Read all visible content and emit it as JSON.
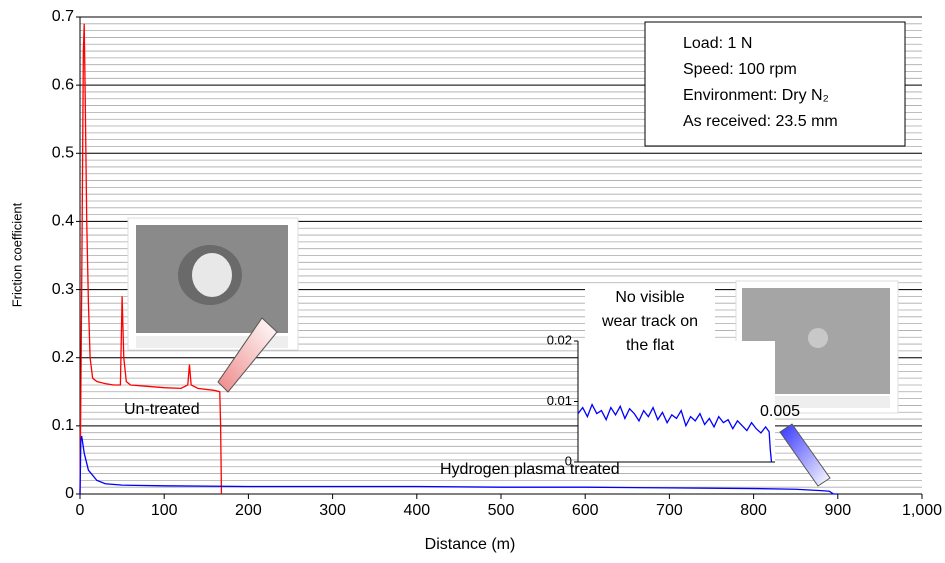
{
  "chart_data": [
    {
      "type": "line",
      "x_label": "Distance (m)",
      "y_label": "Friction coefficient",
      "xlim": [
        0,
        1000
      ],
      "ylim": [
        0,
        0.7
      ],
      "xticks": [
        0,
        100,
        200,
        300,
        400,
        500,
        600,
        700,
        800,
        900,
        {
          "value": 1000,
          "label": "1,000"
        }
      ],
      "yticks": [
        0,
        0.1,
        0.2,
        0.3,
        0.4,
        0.5,
        0.6,
        0.7
      ],
      "grid": true,
      "minor_grid": 0.01,
      "series": [
        {
          "name": "Un-treated",
          "color": "#ff0000",
          "x": [
            0,
            2,
            4,
            5,
            6,
            8,
            10,
            12,
            15,
            20,
            30,
            40,
            48,
            50,
            52,
            55,
            60,
            80,
            100,
            120,
            128,
            130,
            132,
            140,
            160,
            166,
            167,
            168
          ],
          "values": [
            0,
            0.3,
            0.65,
            0.69,
            0.6,
            0.4,
            0.28,
            0.2,
            0.17,
            0.165,
            0.162,
            0.16,
            0.16,
            0.29,
            0.2,
            0.165,
            0.16,
            0.158,
            0.156,
            0.155,
            0.16,
            0.19,
            0.16,
            0.155,
            0.152,
            0.15,
            0.1,
            0
          ]
        },
        {
          "name": "Hydrogen plasma treated",
          "color": "#0000ff",
          "x": [
            0,
            1,
            2,
            5,
            10,
            20,
            30,
            50,
            100,
            200,
            300,
            400,
            500,
            600,
            700,
            800,
            850,
            880,
            890,
            895,
            900
          ],
          "values": [
            0,
            0.08,
            0.085,
            0.06,
            0.035,
            0.02,
            0.015,
            0.013,
            0.012,
            0.011,
            0.011,
            0.011,
            0.01,
            0.01,
            0.009,
            0.008,
            0.007,
            0.005,
            0.004,
            0,
            0
          ]
        }
      ],
      "annotations": {
        "conditions": [
          "Load: 1 N",
          "Speed: 100 rpm",
          "Environment: Dry N₂",
          "As received: 23.5 mm"
        ],
        "wear_note": [
          "No visible",
          "wear track on",
          "the flat"
        ],
        "inset_value": "0.005"
      }
    },
    {
      "type": "line",
      "xlim": [
        0,
        840
      ],
      "ylim": [
        0,
        0.02
      ],
      "yticks": [
        0,
        0.01,
        0.02
      ],
      "series": [
        {
          "name": "Hydrogen plasma treated",
          "color": "#0000ff",
          "x": [
            0,
            20,
            40,
            60,
            80,
            100,
            120,
            140,
            160,
            180,
            200,
            220,
            240,
            260,
            280,
            300,
            320,
            340,
            360,
            380,
            400,
            420,
            440,
            460,
            480,
            500,
            520,
            540,
            560,
            580,
            600,
            620,
            640,
            660,
            680,
            700,
            720,
            740,
            760,
            780,
            800,
            815,
            820,
            825
          ],
          "values": [
            0.008,
            0.009,
            0.0075,
            0.0095,
            0.008,
            0.0085,
            0.007,
            0.009,
            0.0078,
            0.0092,
            0.0072,
            0.0088,
            0.008,
            0.0068,
            0.0085,
            0.0075,
            0.009,
            0.007,
            0.0082,
            0.0065,
            0.0078,
            0.0072,
            0.0085,
            0.006,
            0.0075,
            0.0068,
            0.008,
            0.0062,
            0.0072,
            0.0058,
            0.0075,
            0.0065,
            0.007,
            0.0055,
            0.0068,
            0.006,
            0.0052,
            0.0065,
            0.0055,
            0.0048,
            0.0058,
            0.005,
            0.002,
            0
          ]
        }
      ]
    }
  ]
}
